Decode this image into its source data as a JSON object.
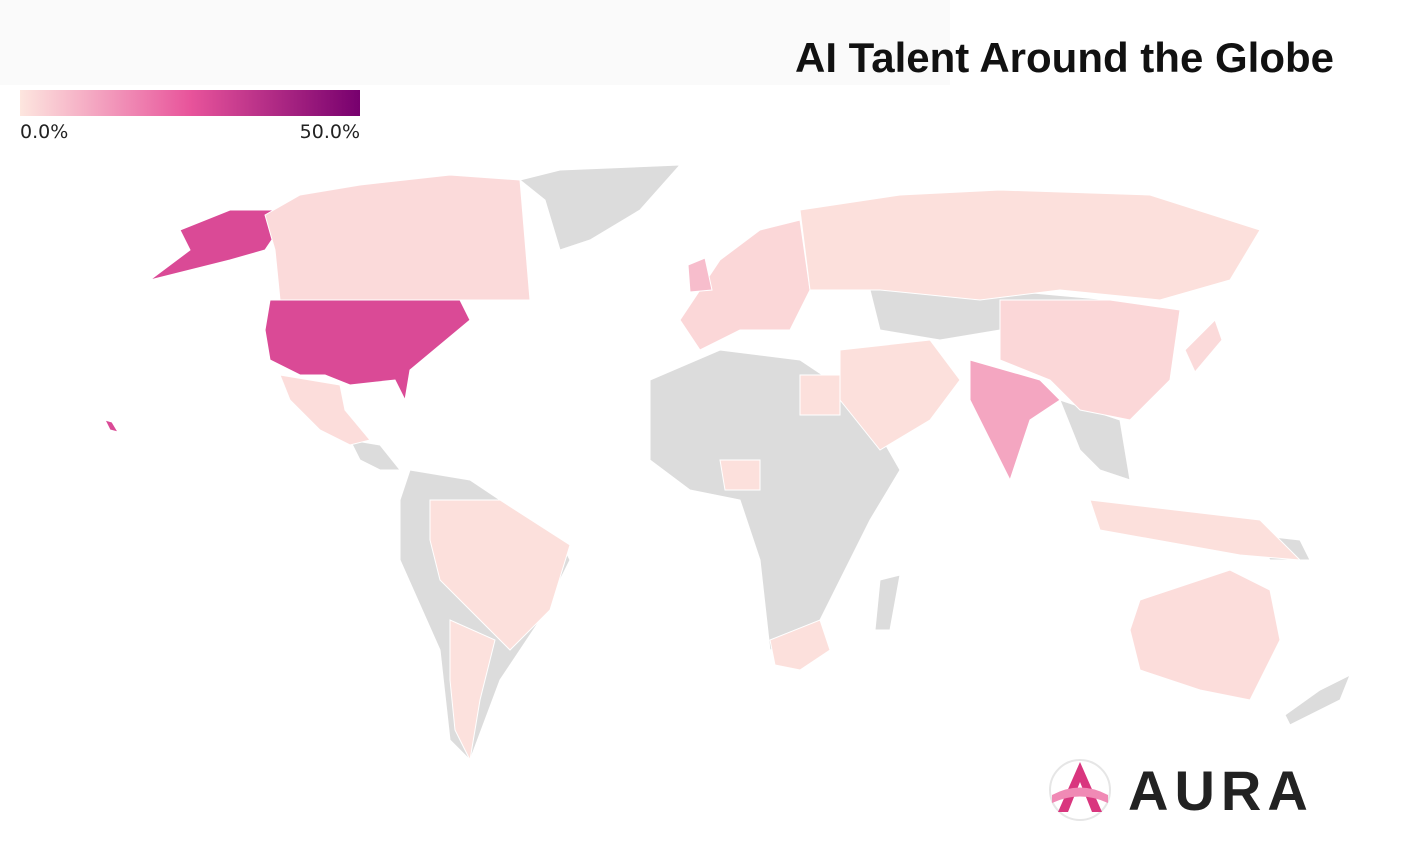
{
  "title": "AI Talent Around the Globe",
  "legend": {
    "ticks": [
      {
        "value": 0,
        "label": "0.0%"
      },
      {
        "value": 50,
        "label": "50.0%"
      }
    ],
    "colorscale": [
      "#fde6df",
      "#e8549b",
      "#77006e"
    ]
  },
  "no_data_color": "#dcdcdc",
  "values": [
    28,
    2,
    1.5,
    1,
    0.8,
    2.5,
    7,
    1,
    2.5,
    1,
    11,
    1,
    1,
    1,
    1.5,
    2
  ],
  "brand": "AURA"
}
